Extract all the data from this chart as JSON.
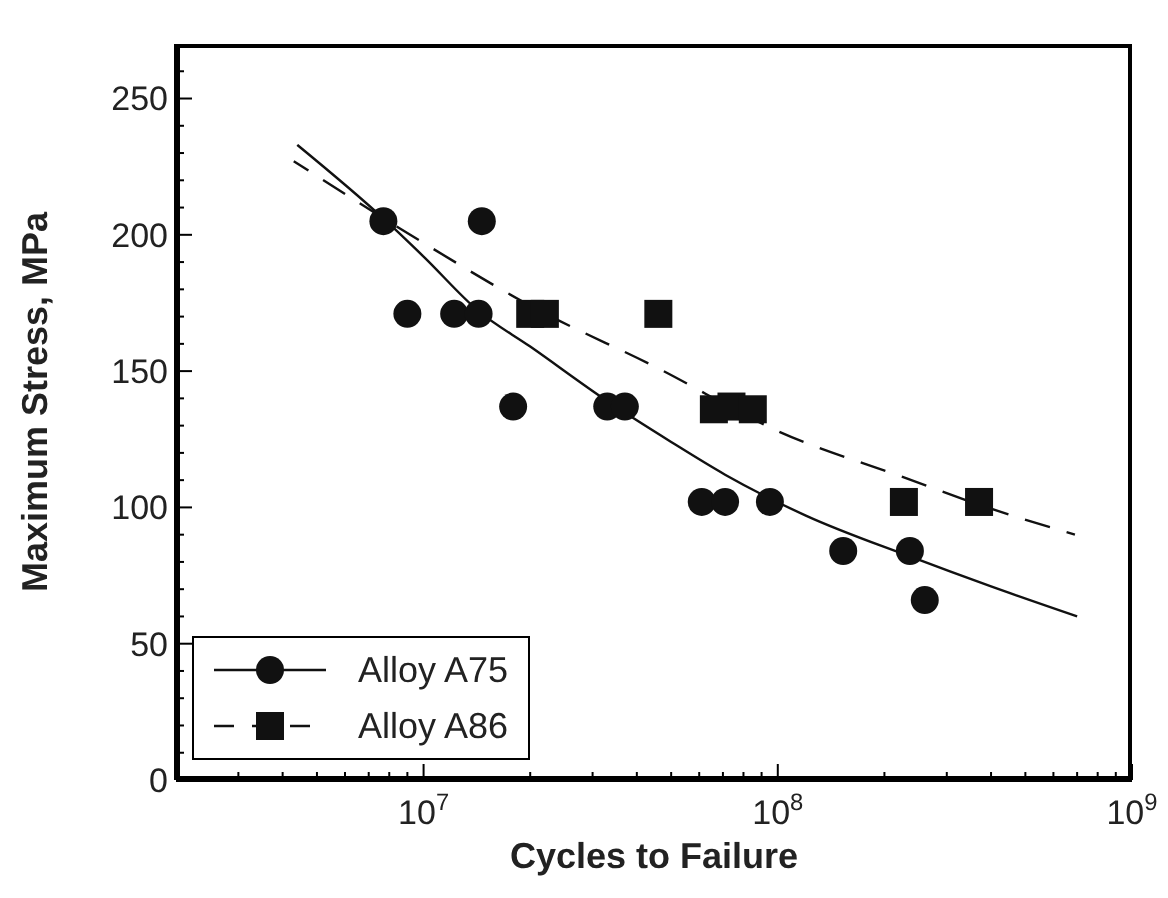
{
  "chart_data": {
    "type": "scatter",
    "xlabel": "Cycles to Failure",
    "ylabel": "Maximum Stress, MPa",
    "log": "x",
    "xlim": [
      2000000,
      1000000000
    ],
    "xticks": [
      {
        "value": 3000000,
        "label": null
      },
      {
        "value": 4000000,
        "label": null
      },
      {
        "value": 5000000,
        "label": null
      },
      {
        "value": 6000000,
        "label": null
      },
      {
        "value": 7000000,
        "label": null
      },
      {
        "value": 8000000,
        "label": null
      },
      {
        "value": 9000000,
        "label": null
      },
      {
        "value": 10000000,
        "label": "10$^{7}$"
      },
      {
        "value": 20000000,
        "label": null
      },
      {
        "value": 30000000,
        "label": null
      },
      {
        "value": 40000000,
        "label": null
      },
      {
        "value": 50000000,
        "label": null
      },
      {
        "value": 60000000,
        "label": null
      },
      {
        "value": 70000000,
        "label": null
      },
      {
        "value": 80000000,
        "label": null
      },
      {
        "value": 90000000,
        "label": null
      },
      {
        "value": 100000000,
        "label": "10$^{8}$"
      },
      {
        "value": 200000000,
        "label": null
      },
      {
        "value": 300000000,
        "label": null
      },
      {
        "value": 400000000,
        "label": null
      },
      {
        "value": 500000000,
        "label": null
      },
      {
        "value": 600000000,
        "label": null
      },
      {
        "value": 700000000,
        "label": null
      },
      {
        "value": 800000000,
        "label": null
      },
      {
        "value": 900000000,
        "label": null
      },
      {
        "value": 1000000000,
        "label": "10$^{9}$"
      }
    ],
    "ylim": [
      0,
      270
    ],
    "yticks": [
      0,
      {
        "value": 10,
        "label": null
      },
      {
        "value": 20,
        "label": null
      },
      {
        "value": 30,
        "label": null
      },
      {
        "value": 40,
        "label": null
      },
      50,
      {
        "value": 60,
        "label": null
      },
      {
        "value": 70,
        "label": null
      },
      {
        "value": 80,
        "label": null
      },
      {
        "value": 90,
        "label": null
      },
      100,
      {
        "value": 110,
        "label": null
      },
      {
        "value": 120,
        "label": null
      },
      {
        "value": 130,
        "label": null
      },
      {
        "value": 140,
        "label": null
      },
      150,
      {
        "value": 160,
        "label": null
      },
      {
        "value": 170,
        "label": null
      },
      {
        "value": 180,
        "label": null
      },
      {
        "value": 190,
        "label": null
      },
      200,
      {
        "value": 210,
        "label": null
      },
      {
        "value": 220,
        "label": null
      },
      {
        "value": 230,
        "label": null
      },
      {
        "value": 240,
        "label": null
      },
      250,
      {
        "value": 260,
        "label": null
      }
    ],
    "legend": "bottom left",
    "series": [
      {
        "name": "Alloy A75",
        "marker": "circle",
        "color": "#111111",
        "x": [
          7700000,
          9000000,
          12200000,
          14300000,
          14600000,
          17900000,
          33000000,
          37000000,
          61000000,
          71000000,
          95000000,
          153000000,
          236000000,
          260000000
        ],
        "values": [
          205,
          171,
          171,
          171,
          205,
          137,
          137,
          137,
          102,
          102,
          102,
          84,
          84,
          66
        ]
      },
      {
        "type": "line",
        "line_style": "solid",
        "color": "#111111",
        "x": [
          4400000,
          7700000,
          10000000,
          14300000,
          20000000,
          33000000,
          50000000,
          71000000,
          120000000,
          236000000,
          400000000,
          700000000
        ],
        "values": [
          233,
          206,
          192,
          172,
          159,
          139,
          124,
          112,
          97,
          82,
          71,
          60
        ]
      },
      {
        "name": "Alloy A86",
        "marker": "square",
        "color": "#111111",
        "x": [
          20000000,
          22000000,
          46000000,
          66000000,
          74000000,
          85000000,
          227000000,
          370000000
        ],
        "values": [
          171,
          171,
          171,
          136,
          137,
          136,
          102,
          102
        ]
      },
      {
        "type": "line",
        "line_style": "dashed",
        "color": "#111111",
        "x": [
          4300000,
          10000000,
          20000000,
          46000000,
          100000000,
          227000000,
          370000000,
          690000000
        ],
        "values": [
          227,
          197,
          174,
          151,
          128,
          111,
          101,
          90
        ]
      }
    ]
  }
}
